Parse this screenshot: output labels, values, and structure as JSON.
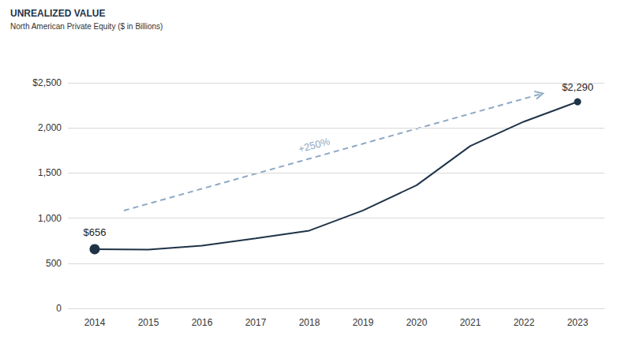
{
  "chart_data": {
    "type": "line",
    "title": "UNREALIZED VALUE",
    "subtitle": "North American Private Equity ($ in Billions)",
    "categories": [
      "2014",
      "2015",
      "2016",
      "2017",
      "2018",
      "2019",
      "2020",
      "2021",
      "2022",
      "2023"
    ],
    "values": [
      656,
      652,
      695,
      775,
      862,
      1085,
      1365,
      1800,
      2070,
      2290
    ],
    "value_labels": [
      "$656",
      null,
      null,
      null,
      null,
      null,
      null,
      null,
      null,
      "$2,290"
    ],
    "color": "#1f3347",
    "marker": "circle",
    "ylim": [
      0,
      2500
    ],
    "yticks": [
      0,
      500,
      {
        "value": 1000,
        "label": "1,000"
      },
      {
        "value": 1500,
        "label": "1,500"
      },
      {
        "value": 2000,
        "label": "2,000"
      },
      {
        "value": 2500,
        "label": "$2,500"
      }
    ],
    "grid": true,
    "annotations": [
      "+250%"
    ]
  }
}
